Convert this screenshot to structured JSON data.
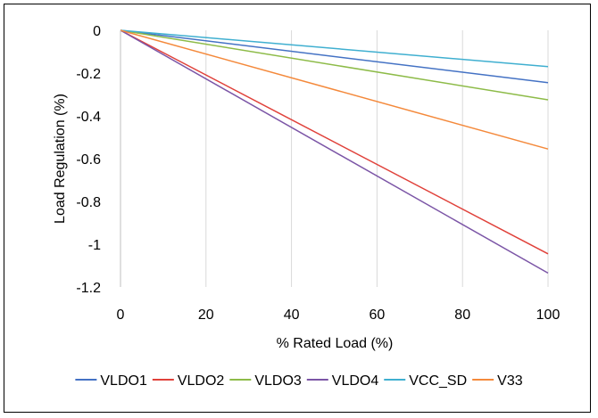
{
  "chart_data": {
    "type": "line",
    "title": "",
    "xlabel": "% Rated Load (%)",
    "ylabel": "Load Regulation (%)",
    "xlim": [
      0,
      100
    ],
    "ylim": [
      -1.2,
      0
    ],
    "x_ticks": [
      0,
      20,
      40,
      60,
      80,
      100
    ],
    "y_ticks": [
      0,
      -0.2,
      -0.4,
      -0.6,
      -0.8,
      -1,
      -1.2
    ],
    "x_tick_labels": [
      "0",
      "20",
      "40",
      "60",
      "80",
      "100"
    ],
    "y_tick_labels": [
      "0",
      "-0.2",
      "-0.4",
      "-0.6",
      "-0.8",
      "-1",
      "-1.2"
    ],
    "grid": "vertical",
    "legend_position": "bottom",
    "series": [
      {
        "name": "VLDO1",
        "color": "#4472C4",
        "x": [
          0,
          100
        ],
        "y": [
          0,
          -0.245
        ]
      },
      {
        "name": "VLDO2",
        "color": "#E0413A",
        "x": [
          0,
          100
        ],
        "y": [
          0,
          -1.045
        ]
      },
      {
        "name": "VLDO3",
        "color": "#8DBB48",
        "x": [
          0,
          100
        ],
        "y": [
          0,
          -0.325
        ]
      },
      {
        "name": "VLDO4",
        "color": "#7B55A6",
        "x": [
          0,
          100
        ],
        "y": [
          0,
          -1.135
        ]
      },
      {
        "name": "VCC_SD",
        "color": "#3FAFD0",
        "x": [
          0,
          100
        ],
        "y": [
          0,
          -0.17
        ]
      },
      {
        "name": "V33",
        "color": "#F4893B",
        "x": [
          0,
          100
        ],
        "y": [
          0,
          -0.555
        ]
      }
    ]
  }
}
